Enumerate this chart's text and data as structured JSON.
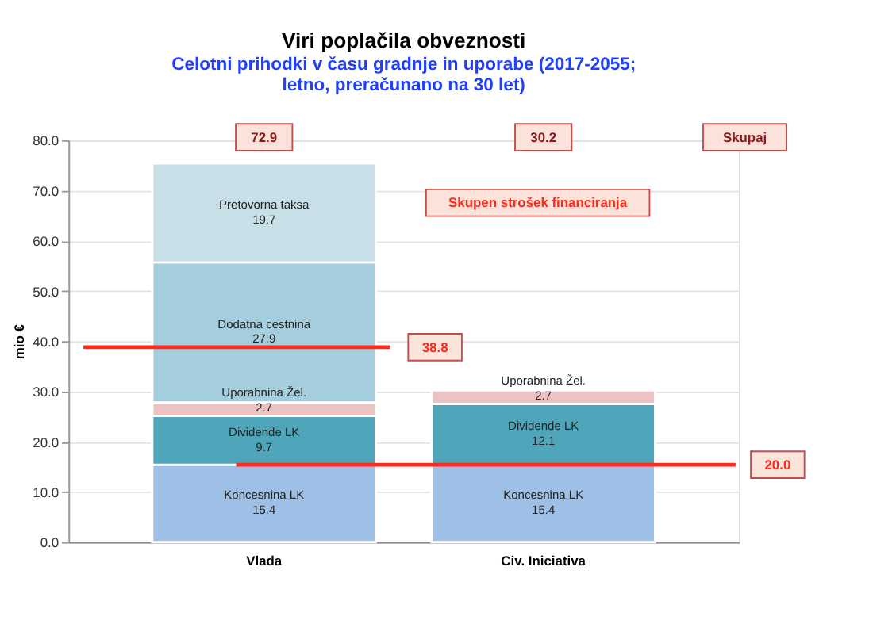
{
  "chart_data": {
    "type": "bar",
    "stacked": true,
    "title": "Viri poplačila obveznosti",
    "subtitle": "Celotni prihodki v času gradnje in uporabe (2017-2055;\nletno, preračunano na 30 let)",
    "ylabel": "mio €",
    "categories": [
      "Vlada",
      "Civ. Iniciativa"
    ],
    "series": [
      {
        "name": "Koncesnina LK",
        "color": "#9fc0e6",
        "values": [
          15.4,
          15.4
        ]
      },
      {
        "name": "Dividende LK",
        "color": "#4fa6ba",
        "values": [
          9.7,
          12.1
        ]
      },
      {
        "name": "Uporabnina Žel.",
        "color": "#ecc2c2",
        "values": [
          2.7,
          2.7
        ]
      },
      {
        "name": "Dodatna cestnina",
        "color": "#a4cedd",
        "values": [
          27.9,
          null
        ]
      },
      {
        "name": "Pretovorna taksa",
        "color": "#c8dfe8",
        "values": [
          19.7,
          null
        ]
      }
    ],
    "data_labels": true,
    "ylim": [
      0,
      80
    ],
    "yticks": [
      {
        "value": 0,
        "label": "0.0"
      },
      {
        "value": 10,
        "label": "10.0"
      },
      {
        "value": 20,
        "label": "20.0"
      },
      {
        "value": 30,
        "label": "30.0"
      },
      {
        "value": 40,
        "label": "40.0"
      },
      {
        "value": 50,
        "label": "50.0"
      },
      {
        "value": 60,
        "label": "60.0"
      },
      {
        "value": 70,
        "label": "70.0"
      },
      {
        "value": 80,
        "label": "80.0"
      }
    ],
    "grid": "y",
    "ref_lines": [
      {
        "axis": "y",
        "value": 38.8,
        "label": "38.8",
        "color": "#ff2a1a"
      },
      {
        "axis": "y",
        "value": 15.4,
        "color": "#ff2a1a"
      }
    ],
    "annotations": [
      "72.9",
      "30.2",
      "Skupaj",
      "Skupen strošek financiranja",
      "20.0"
    ]
  }
}
